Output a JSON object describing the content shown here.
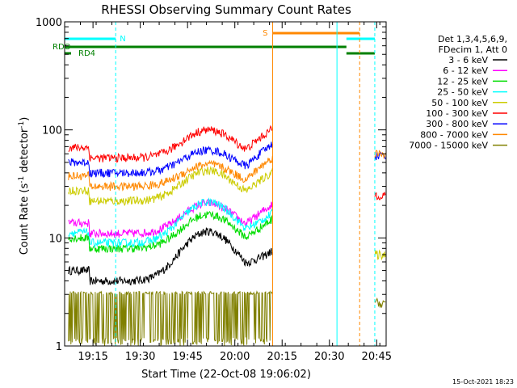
{
  "chart_data": {
    "type": "line",
    "title": "RHESSI Observing Summary Count Rates",
    "xlabel": "Start Time (22-Oct-08 19:06:02)",
    "ylabel_main": "Count Rate (s",
    "ylabel_sup1": "-1",
    "ylabel_mid": " detector",
    "ylabel_sup2": "-1",
    "ylabel_end": ")",
    "yscale": "log",
    "ylim": [
      1,
      1000
    ],
    "xlim_minutes": [
      19.1,
      20.8
    ],
    "x_ticks": [
      {
        "t": 19.25,
        "label": "19:15"
      },
      {
        "t": 19.5,
        "label": "19:30"
      },
      {
        "t": 19.75,
        "label": "19:45"
      },
      {
        "t": 20.0,
        "label": "20:00"
      },
      {
        "t": 20.25,
        "label": "20:15"
      },
      {
        "t": 20.5,
        "label": "20:30"
      },
      {
        "t": 20.75,
        "label": "20:45"
      }
    ],
    "y_ticks": [
      {
        "v": 1,
        "label": "1"
      },
      {
        "v": 10,
        "label": "10"
      },
      {
        "v": 100,
        "label": "100"
      },
      {
        "v": 1000,
        "label": "1000"
      }
    ],
    "legend_header": [
      "Det 1,3,4,5,6,9,",
      "FDecim 1, Att 0"
    ],
    "series": [
      {
        "name": "3 - 6 keV",
        "color": "#000000",
        "base": 4.0,
        "peak": 11.5,
        "post": null
      },
      {
        "name": "6 - 12 keV",
        "color": "#ff00ff",
        "base": 11.0,
        "peak": 21.0,
        "post": null
      },
      {
        "name": "12 - 25 keV",
        "color": "#00dd00",
        "base": 8.0,
        "peak": 16.5,
        "post": null
      },
      {
        "name": "25 - 50 keV",
        "color": "#00ffff",
        "base": 9.0,
        "peak": 21.5,
        "post": null
      },
      {
        "name": "50 - 100 keV",
        "color": "#cccc00",
        "base": 22.0,
        "peak": 42.0,
        "post": 7.0
      },
      {
        "name": "100 - 300 keV",
        "color": "#ff0000",
        "base": 55.0,
        "peak": 100.0,
        "post": 25.0
      },
      {
        "name": "300 - 800 keV",
        "color": "#0000ff",
        "base": 40.0,
        "peak": 65.0,
        "post": 58.0
      },
      {
        "name": "800 - 7000 keV",
        "color": "#ff8800",
        "base": 30.0,
        "peak": 48.0,
        "post": 60.0
      },
      {
        "name": "7000 - 15000 keV",
        "color": "#808000",
        "base": 1.5,
        "peak": 3.0,
        "post": 2.5
      }
    ],
    "flags": [
      {
        "label": "RDO",
        "color": "#008000"
      },
      {
        "label": "RD4",
        "color": "#008000"
      },
      {
        "label": "N",
        "color": "#00ffff"
      },
      {
        "label": "S",
        "color": "#ff8800"
      }
    ],
    "events": {
      "night_start": 19.1,
      "night_end": 19.37,
      "saa_start": 20.2,
      "saa_end": 20.66,
      "night2_start": 20.59,
      "night2_end": 20.74,
      "data_gap_start": 20.2,
      "data_gap_end": 20.74,
      "data_end": 20.8
    },
    "timestamp": "15-Oct-2021 18:23"
  }
}
